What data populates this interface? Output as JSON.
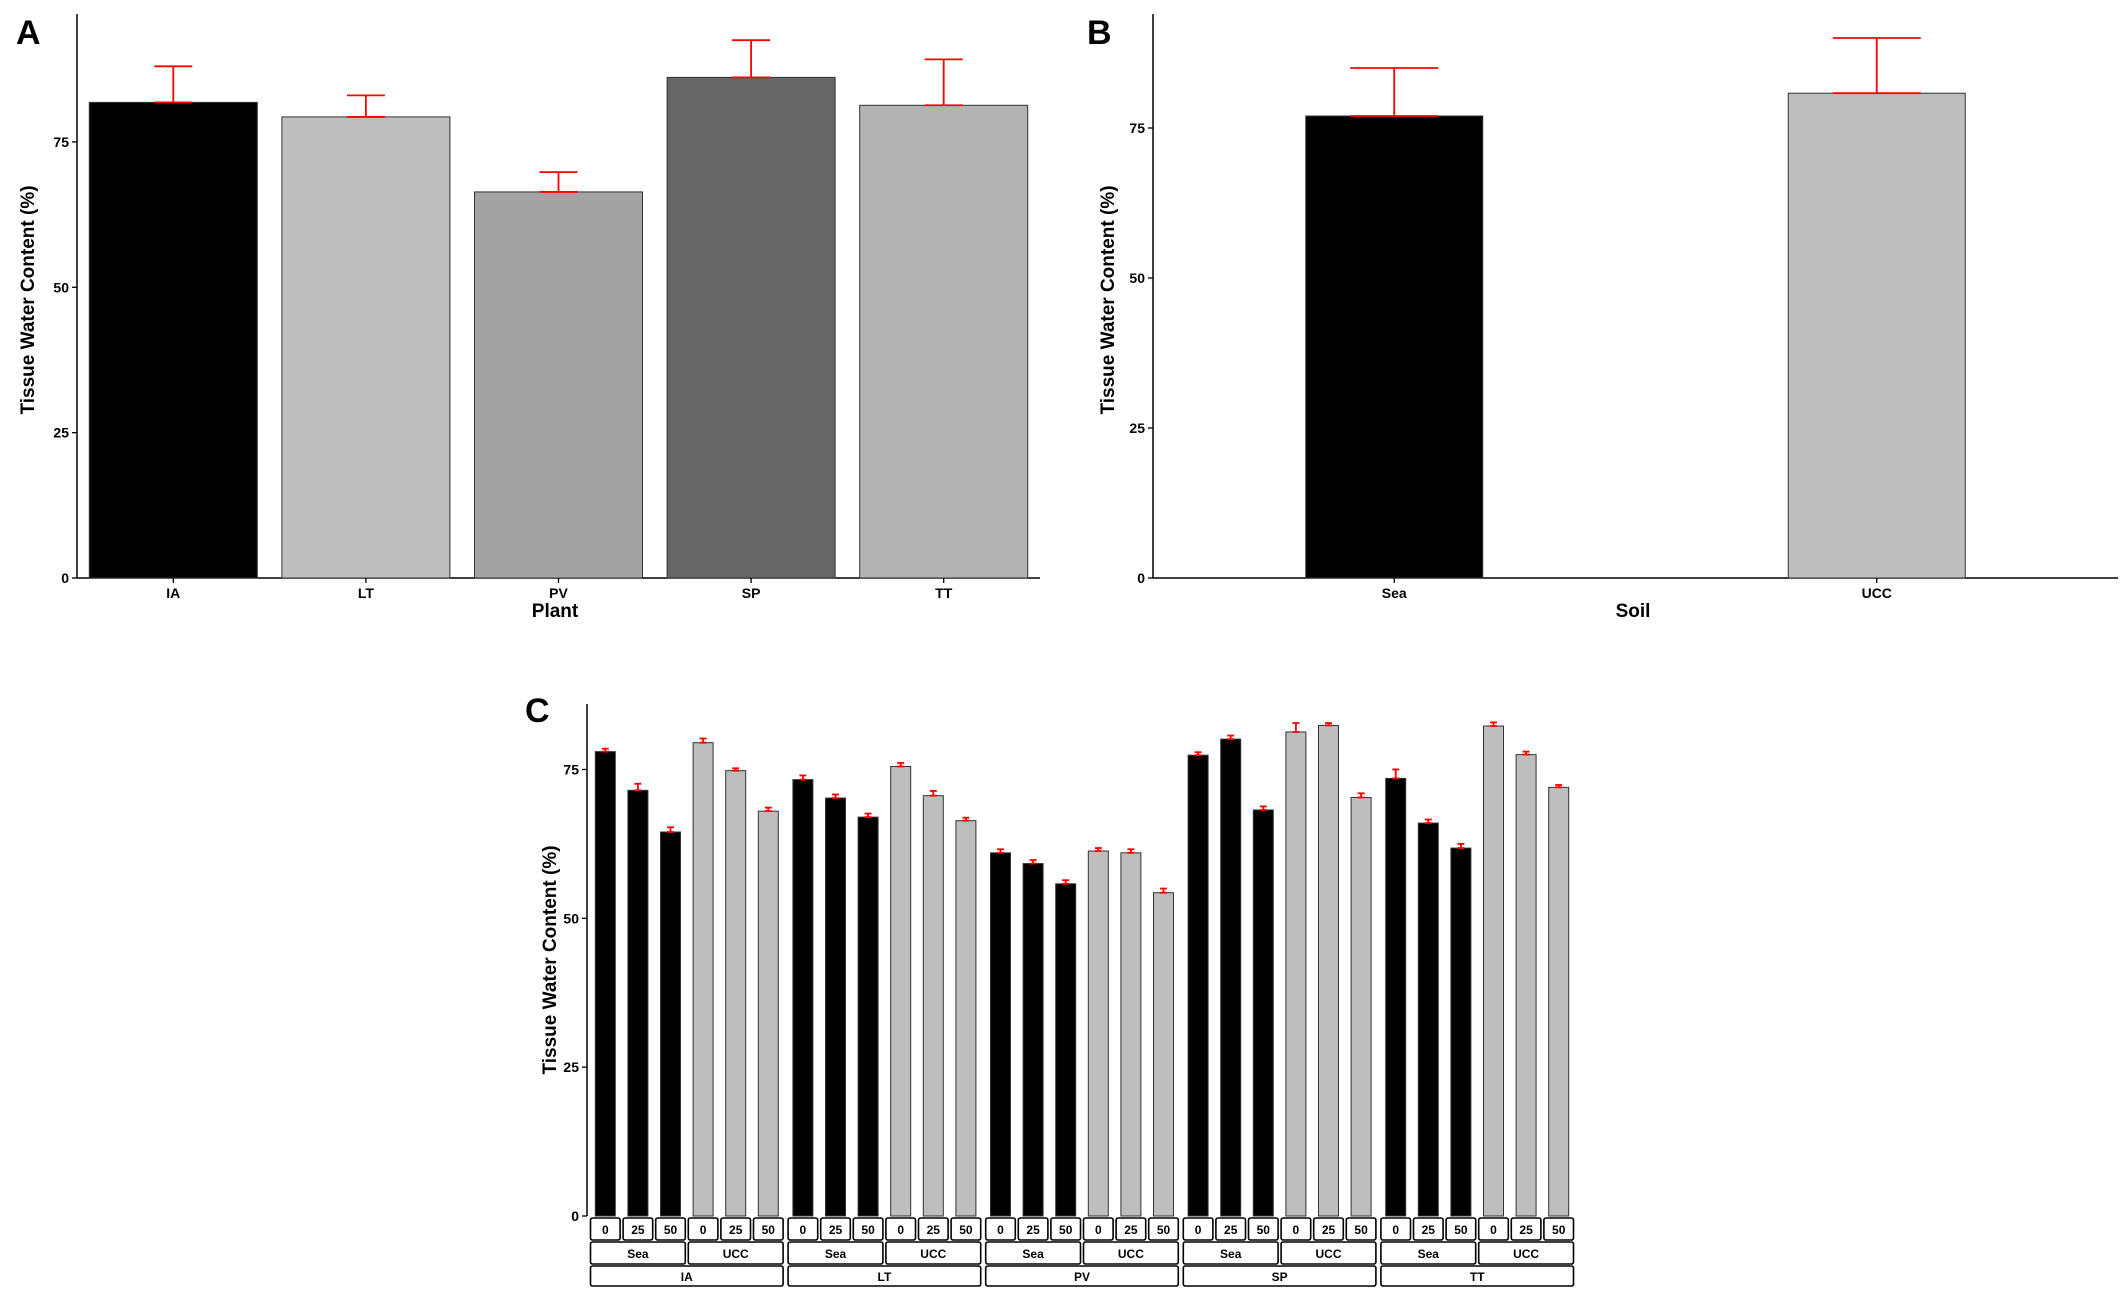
{
  "colors": {
    "error_bar": "#ff0000",
    "sea": "#000000",
    "ucc": "#bebebe",
    "axis": "#000000",
    "plant_fills": [
      "#000000",
      "#bebebe",
      "#a3a3a3",
      "#666666",
      "#b3b3b3"
    ]
  },
  "chart_data": [
    {
      "panel": "A",
      "type": "bar",
      "xlabel": "Plant",
      "ylabel": "Tissue Water Content (%)",
      "ylim": [
        0,
        97
      ],
      "yticks": [
        0,
        25,
        50,
        75
      ],
      "categories": [
        "IA",
        "LT",
        "PV",
        "SP",
        "TT"
      ],
      "values": [
        81.8,
        79.3,
        66.4,
        86.1,
        81.3
      ],
      "error_upper": [
        88.0,
        83.0,
        69.8,
        92.5,
        89.2
      ],
      "legend": "none",
      "grid": false
    },
    {
      "panel": "B",
      "type": "bar",
      "xlabel": "Soil",
      "ylabel": "Tissue Water Content (%)",
      "ylim": [
        0,
        94
      ],
      "yticks": [
        0,
        25,
        50,
        75
      ],
      "categories": [
        "Sea",
        "UCC"
      ],
      "values": [
        77.0,
        80.8
      ],
      "error_upper": [
        85.0,
        90.0
      ],
      "legend": "none",
      "grid": false
    },
    {
      "panel": "C",
      "type": "bar",
      "xlabel": "",
      "ylabel": "Tissue Water Content (%)",
      "ylim": [
        0,
        86
      ],
      "yticks": [
        0,
        25,
        50,
        75
      ],
      "plants": [
        "IA",
        "LT",
        "PV",
        "SP",
        "TT"
      ],
      "soils": [
        "Sea",
        "UCC"
      ],
      "levels": [
        "0",
        "25",
        "50"
      ],
      "values": {
        "IA": {
          "Sea": [
            78.0,
            71.5,
            64.5
          ],
          "UCC": [
            79.5,
            74.8,
            68.0
          ]
        },
        "LT": {
          "Sea": [
            73.3,
            70.2,
            67.0
          ],
          "UCC": [
            75.5,
            70.6,
            66.4
          ]
        },
        "PV": {
          "Sea": [
            61.0,
            59.2,
            55.8
          ],
          "UCC": [
            61.3,
            61.0,
            54.3
          ]
        },
        "SP": {
          "Sea": [
            77.4,
            80.1,
            68.2
          ],
          "UCC": [
            81.3,
            82.4,
            70.3
          ]
        },
        "TT": {
          "Sea": [
            73.5,
            66.0,
            61.8
          ],
          "UCC": [
            82.3,
            77.5,
            72.0
          ]
        }
      },
      "error_upper": {
        "IA": {
          "Sea": [
            78.5,
            72.6,
            65.3
          ],
          "UCC": [
            80.2,
            75.2,
            68.6
          ]
        },
        "LT": {
          "Sea": [
            74.0,
            70.8,
            67.6
          ],
          "UCC": [
            76.1,
            71.4,
            66.9
          ]
        },
        "PV": {
          "Sea": [
            61.6,
            59.8,
            56.4
          ],
          "UCC": [
            61.8,
            61.6,
            55.0
          ]
        },
        "SP": {
          "Sea": [
            77.9,
            80.7,
            68.8
          ],
          "UCC": [
            82.8,
            82.8,
            71.0
          ]
        },
        "TT": {
          "Sea": [
            75.0,
            66.6,
            62.5
          ],
          "UCC": [
            82.9,
            78.0,
            72.4
          ]
        }
      },
      "legend": "none",
      "grid": false
    }
  ]
}
